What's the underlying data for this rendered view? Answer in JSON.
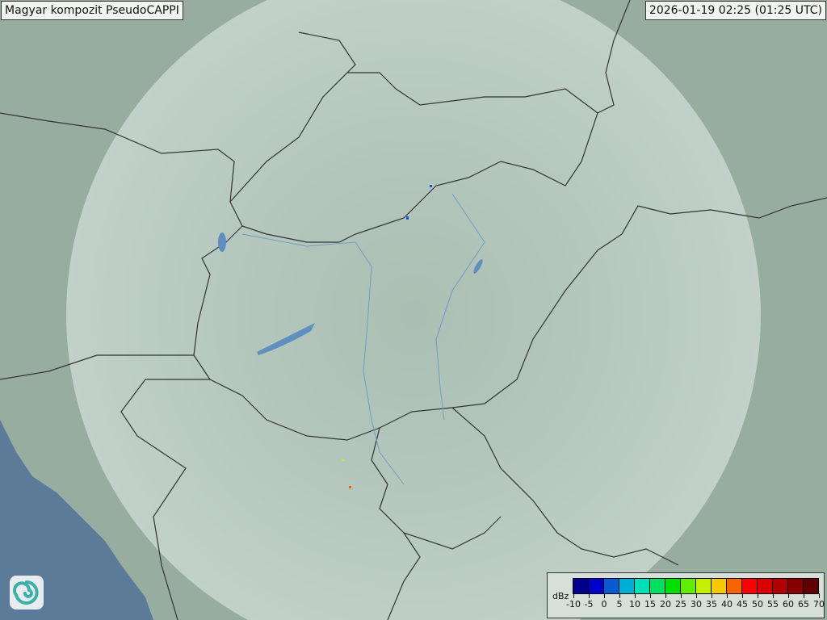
{
  "header": {
    "title": "Magyar kompozit  PseudoCAPPI",
    "timestamp": "2026-01-19 02:25 (01:25 UTC)"
  },
  "legend": {
    "unit": "dBz",
    "ticks": [
      "-10",
      "-5",
      "0",
      "5",
      "10",
      "15",
      "20",
      "25",
      "30",
      "35",
      "40",
      "45",
      "50",
      "55",
      "60",
      "65",
      "70"
    ],
    "colors": [
      "#00008c",
      "#0000cc",
      "#0a5ad2",
      "#00afd8",
      "#00e0b8",
      "#00e060",
      "#00e000",
      "#60ee00",
      "#c4f000",
      "#f8c800",
      "#f86400",
      "#ff0000",
      "#d80000",
      "#b00000",
      "#880000",
      "#600000"
    ]
  },
  "logo": {
    "name": "omsz-swirl-logo"
  },
  "map": {
    "land_color": "#9db3a6",
    "sea_color": "#5a7a9a",
    "coverage_color": "#d8e6e0",
    "border_color": "#333333",
    "river_color": "#6f9fc8"
  }
}
